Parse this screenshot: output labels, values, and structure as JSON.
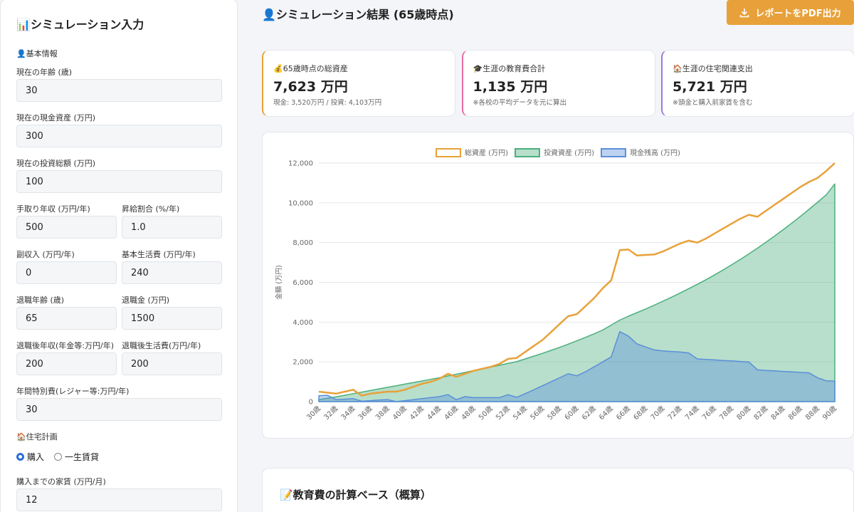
{
  "sidebar": {
    "title": "📊シミュレーション入力",
    "basic_heading": "👤基本情報",
    "rows": [
      [
        {
          "label": "現在の年齢 (歳)",
          "value": "30"
        }
      ],
      [
        {
          "label": "現在の現金資産 (万円)",
          "value": "300"
        }
      ],
      [
        {
          "label": "現在の投資総額 (万円)",
          "value": "100"
        }
      ],
      [
        {
          "label": "手取り年収 (万円/年)",
          "value": "500"
        },
        {
          "label": "昇給割合 (%/年)",
          "value": "1.0"
        }
      ],
      [
        {
          "label": "副収入 (万円/年)",
          "value": "0"
        },
        {
          "label": "基本生活費 (万円/年)",
          "value": "240"
        }
      ],
      [
        {
          "label": "退職年齢 (歳)",
          "value": "65"
        },
        {
          "label": "退職金 (万円)",
          "value": "1500"
        }
      ],
      [
        {
          "label": "退職後年収(年金等:万円/年)",
          "value": "200"
        },
        {
          "label": "退職後生活費(万円/年)",
          "value": "200"
        }
      ],
      [
        {
          "label": "年間特別費(レジャー等:万円/年)",
          "value": "30"
        }
      ]
    ],
    "housing_heading": "🏠住宅計画",
    "housing_options": [
      "購入",
      "一生賃貸"
    ],
    "rent_field": {
      "label": "購入までの家賃 (万円/月)",
      "value": "12"
    }
  },
  "header": {
    "title": "👤シミュレーション結果 (65歳時点)",
    "button": "レポートをPDF出力"
  },
  "cards": [
    {
      "label": "💰65歳時点の総資産",
      "value": "7,623 万円",
      "note": "現金: 3,520万円 / 投資: 4,103万円"
    },
    {
      "label": "🎓生涯の教育費合計",
      "value": "1,135 万円",
      "note": "※各校の平均データを元に算出"
    },
    {
      "label": "🏠生涯の住宅関連支出",
      "value": "5,721 万円",
      "note": "※頭金と購入前家賃を含む"
    }
  ],
  "chart_data": {
    "type": "line",
    "y_label": "金額 (万円)",
    "categories": [
      "30歳",
      null,
      "32歳",
      null,
      "34歳",
      null,
      "36歳",
      null,
      "38歳",
      null,
      "40歳",
      null,
      "42歳",
      null,
      "44歳",
      null,
      "46歳",
      null,
      "48歳",
      null,
      "50歳",
      null,
      "52歳",
      null,
      "54歳",
      null,
      "56歳",
      null,
      "58歳",
      null,
      "60歳",
      null,
      "62歳",
      null,
      "64歳",
      null,
      "66歳",
      null,
      "68歳",
      null,
      "70歳",
      null,
      "72歳",
      null,
      "74歳",
      null,
      "76歳",
      null,
      "78歳",
      null,
      "80歳",
      null,
      "82歳",
      null,
      "84歳",
      null,
      "86歳",
      null,
      "88歳",
      null,
      "90歳"
    ],
    "ylim": [
      0,
      12000
    ],
    "yticks": [
      0,
      {
        "value": 2000,
        "label": "2,000"
      },
      {
        "value": 4000,
        "label": "4,000"
      },
      {
        "value": 6000,
        "label": "6,000"
      },
      {
        "value": 8000,
        "label": "8,000"
      },
      {
        "value": 10000,
        "label": "10,000"
      },
      {
        "value": 12000,
        "label": "12,000"
      }
    ],
    "grid": true,
    "legend": "top",
    "series": [
      {
        "name": "総資産 (万円)",
        "color": "#e8a13a",
        "fill": false,
        "values": [
          500,
          450,
          400,
          500,
          600,
          300,
          400,
          450,
          500,
          500,
          600,
          750,
          900,
          1000,
          1150,
          1400,
          1250,
          1400,
          1550,
          1650,
          1750,
          1900,
          2150,
          2200,
          2500,
          2800,
          3100,
          3500,
          3900,
          4300,
          4400,
          4800,
          5200,
          5700,
          6100,
          7623,
          7650,
          7350,
          7380,
          7400,
          7550,
          7750,
          7950,
          8100,
          8000,
          8200,
          8450,
          8700,
          8950,
          9200,
          9400,
          9300,
          9600,
          9900,
          10200,
          10500,
          10800,
          11050,
          11250,
          11600,
          12000
        ]
      },
      {
        "name": "投資資産 (万円)",
        "color": "#4caf7d",
        "fill": true,
        "values": [
          100,
          170,
          240,
          320,
          400,
          480,
          560,
          640,
          720,
          800,
          880,
          960,
          1040,
          1120,
          1200,
          1290,
          1380,
          1470,
          1560,
          1650,
          1740,
          1830,
          1920,
          2010,
          2150,
          2290,
          2430,
          2580,
          2730,
          2890,
          3060,
          3230,
          3410,
          3600,
          3850,
          4103,
          4300,
          4480,
          4660,
          4850,
          5050,
          5250,
          5460,
          5680,
          5900,
          6130,
          6370,
          6620,
          6880,
          7150,
          7430,
          7720,
          8020,
          8330,
          8650,
          8980,
          9320,
          9670,
          10030,
          10400,
          10950
        ]
      },
      {
        "name": "現金残高 (万円)",
        "color": "#5b8fd9",
        "fill": true,
        "values": [
          300,
          320,
          100,
          120,
          150,
          20,
          50,
          80,
          100,
          0,
          50,
          100,
          150,
          200,
          250,
          350,
          100,
          250,
          200,
          200,
          200,
          200,
          350,
          220,
          400,
          600,
          800,
          1000,
          1200,
          1400,
          1300,
          1500,
          1750,
          2000,
          2250,
          3520,
          3300,
          2900,
          2750,
          2600,
          2550,
          2520,
          2500,
          2450,
          2150,
          2120,
          2100,
          2070,
          2050,
          2020,
          2000,
          1600,
          1570,
          1550,
          1520,
          1500,
          1470,
          1450,
          1200,
          1050,
          1030
        ]
      }
    ]
  },
  "education": {
    "title": "📝教育費の計算ベース（概算）"
  }
}
